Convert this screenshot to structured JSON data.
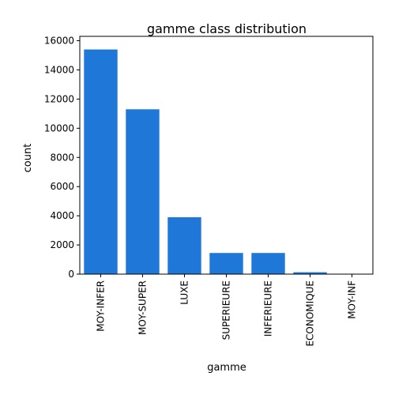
{
  "chart_data": {
    "type": "bar",
    "title": "gamme class distribution",
    "xlabel": "gamme",
    "ylabel": "count",
    "categories": [
      "MOY-INFER",
      "MOY-SUPER",
      "LUXE",
      "SUPERIEURE",
      "INFERIEURE",
      "ECONOMIQUE",
      "MOY-INF"
    ],
    "values": [
      15400,
      11300,
      3900,
      1450,
      1450,
      130,
      5
    ],
    "ylim": [
      0,
      16300
    ],
    "yticks": [
      0,
      2000,
      4000,
      6000,
      8000,
      10000,
      12000,
      14000,
      16000
    ],
    "bar_color": "#1f77d8",
    "grid": false,
    "legend": "none"
  }
}
